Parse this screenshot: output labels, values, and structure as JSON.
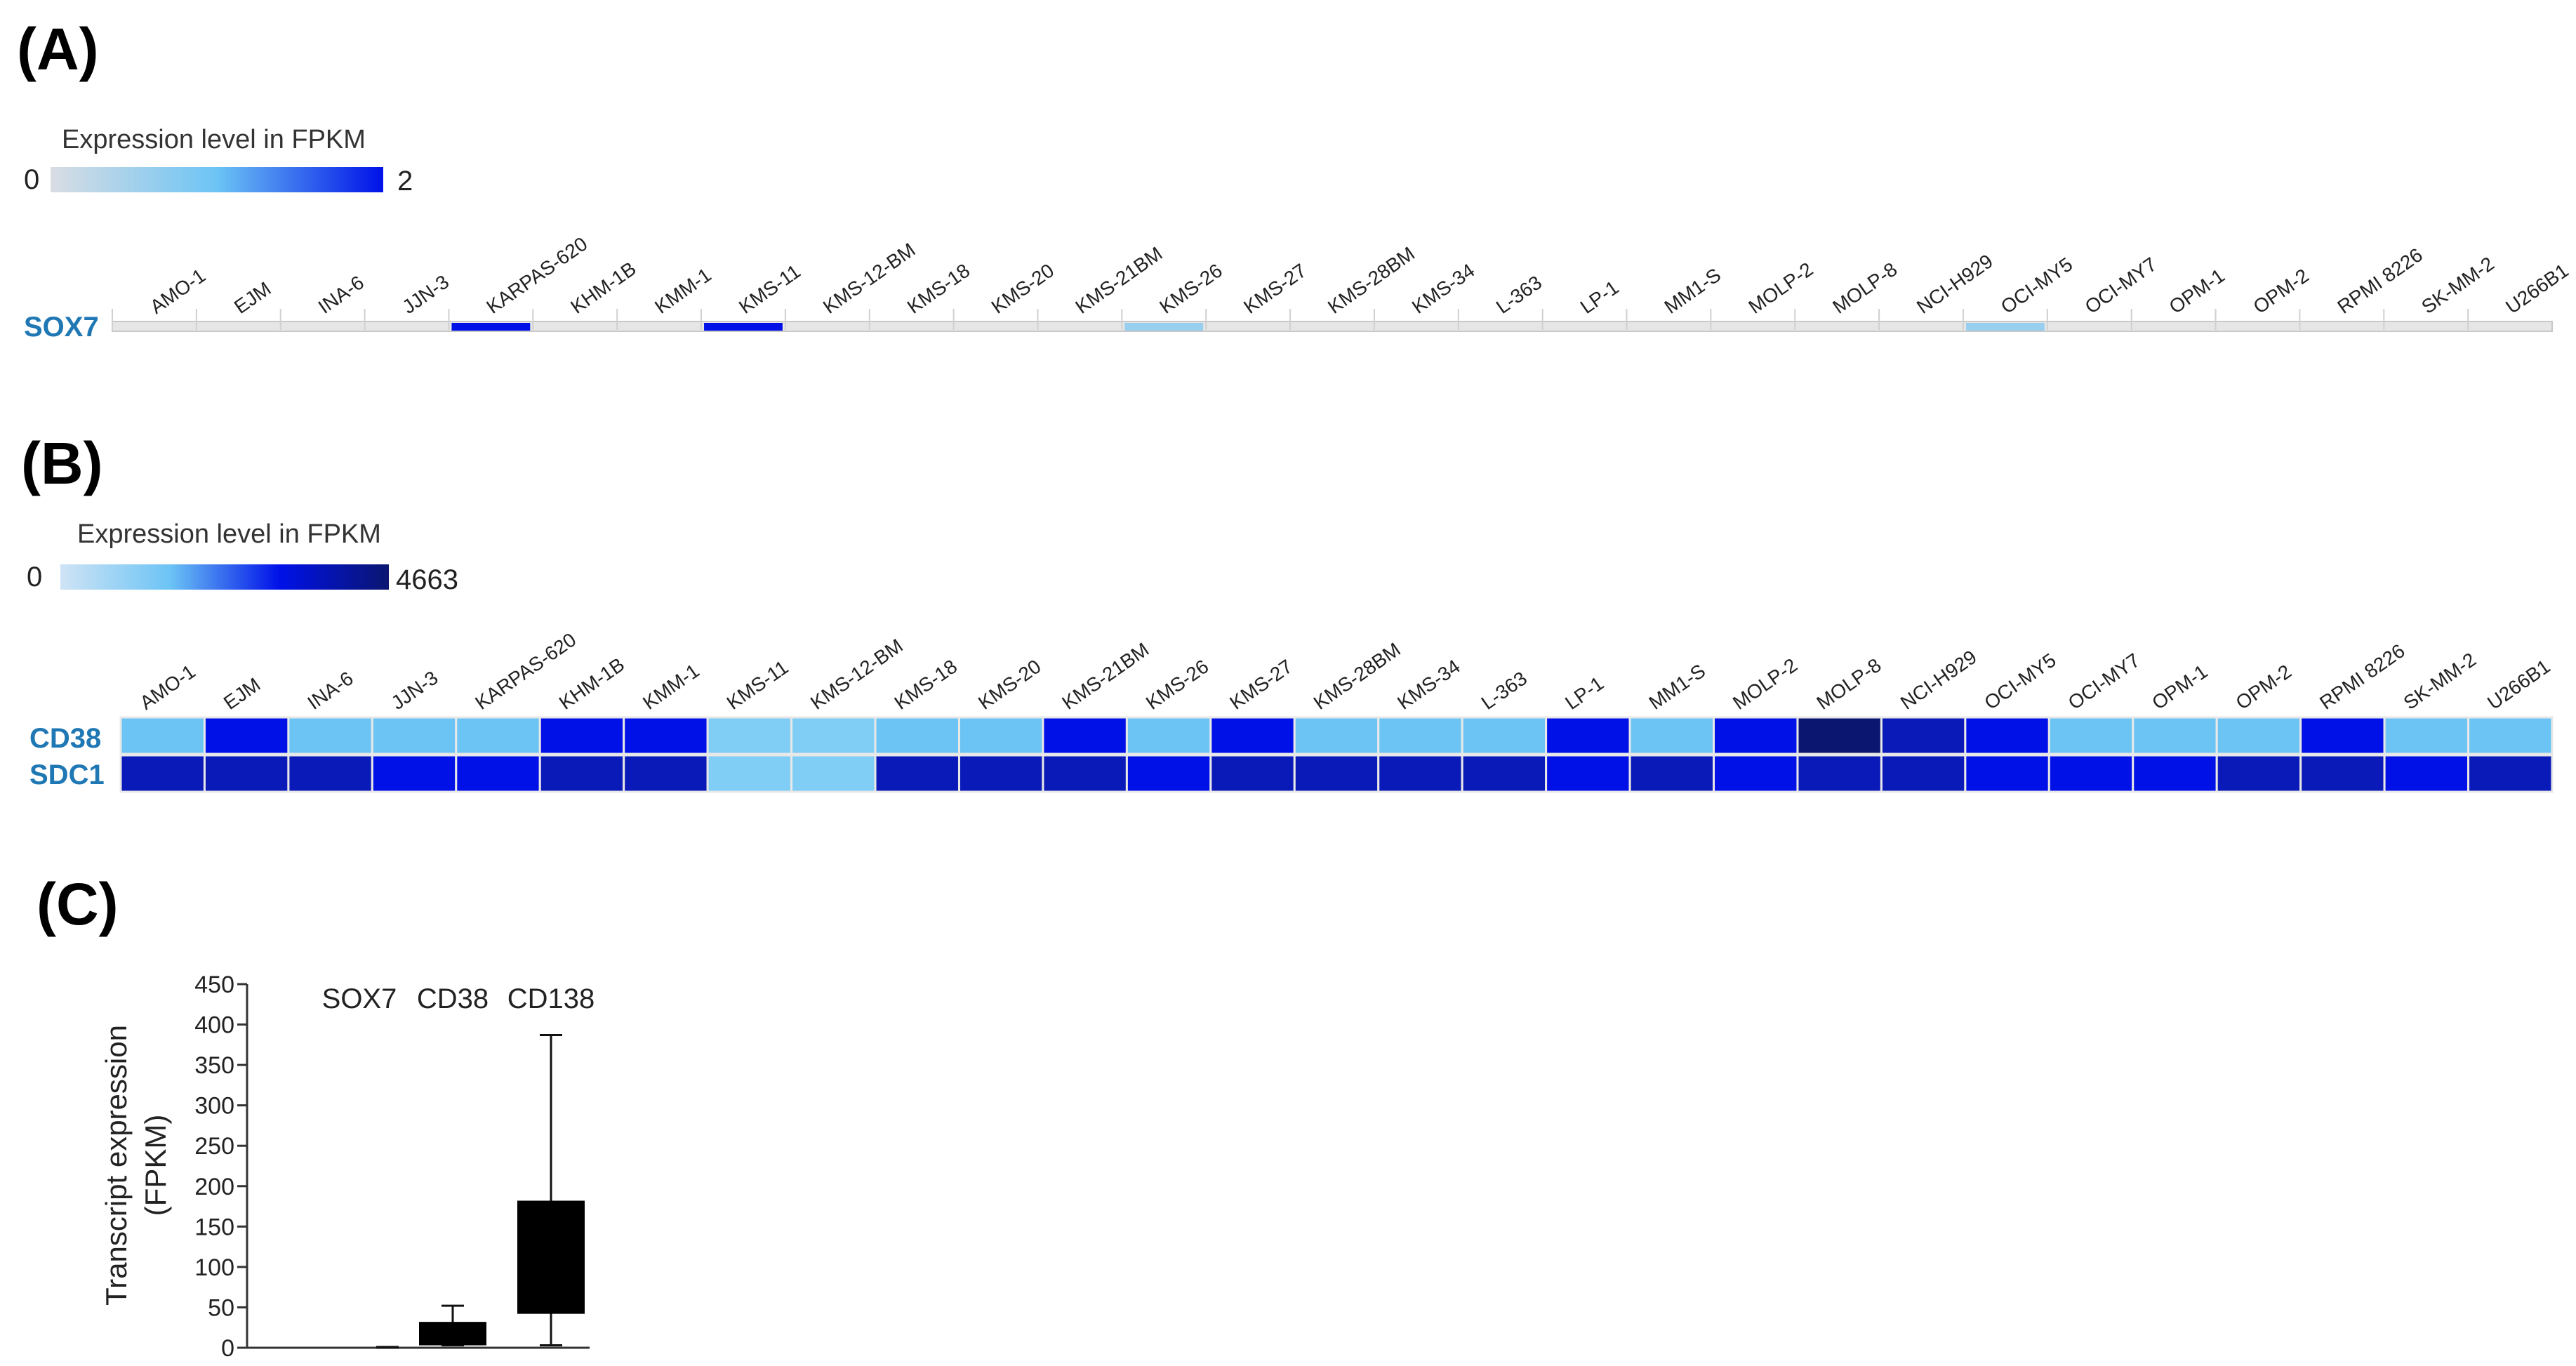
{
  "panels": {
    "a": "(A)",
    "b": "(B)",
    "c": "(C)"
  },
  "panel_a": {
    "legend_title": "Expression level in FPKM",
    "legend_min": "0",
    "legend_max": "2",
    "legend_colors": [
      "#d9dde3",
      "#6cc4f5",
      "#0011e8"
    ],
    "gene": "SOX7"
  },
  "panel_b": {
    "legend_title": "Expression level in FPKM",
    "legend_min": "0",
    "legend_max": "4663",
    "legend_colors": [
      "#cfe3f5",
      "#6cc4f5",
      "#0011e8",
      "#0a1670"
    ],
    "genes": [
      "CD38",
      "SDC1"
    ]
  },
  "colors": {
    "label_blue": "#1f77b4",
    "track_grey": "#e6e6e6",
    "track_border": "#c8c8c8"
  },
  "chart_data": [
    {
      "type": "heatmap",
      "panel": "A",
      "title": "Expression level in FPKM",
      "scale": {
        "min": 0,
        "max": 2
      },
      "columns": [
        "AMO-1",
        "EJM",
        "INA-6",
        "JJN-3",
        "KARPAS-620",
        "KHM-1B",
        "KMM-1",
        "KMS-11",
        "KMS-12-BM",
        "KMS-18",
        "KMS-20",
        "KMS-21BM",
        "KMS-26",
        "KMS-27",
        "KMS-28BM",
        "KMS-34",
        "L-363",
        "LP-1",
        "MM1-S",
        "MOLP-2",
        "MOLP-8",
        "NCI-H929",
        "OCI-MY5",
        "OCI-MY7",
        "OPM-1",
        "OPM-2",
        "RPMI 8226",
        "SK-MM-2",
        "U266B1"
      ],
      "rows": [
        "SOX7"
      ],
      "values": [
        [
          0,
          0,
          0,
          0,
          2,
          0,
          0,
          2,
          0,
          0,
          0,
          0,
          0.6,
          0,
          0,
          0,
          0,
          0,
          0,
          0,
          0,
          0,
          0.6,
          0,
          0,
          0,
          0,
          0,
          0
        ]
      ]
    },
    {
      "type": "heatmap",
      "panel": "B",
      "title": "Expression level in FPKM",
      "scale": {
        "min": 0,
        "max": 4663
      },
      "columns": [
        "AMO-1",
        "EJM",
        "INA-6",
        "JJN-3",
        "KARPAS-620",
        "KHM-1B",
        "KMM-1",
        "KMS-11",
        "KMS-12-BM",
        "KMS-18",
        "KMS-20",
        "KMS-21BM",
        "KMS-26",
        "KMS-27",
        "KMS-28BM",
        "KMS-34",
        "L-363",
        "LP-1",
        "MM1-S",
        "MOLP-2",
        "MOLP-8",
        "NCI-H929",
        "OCI-MY5",
        "OCI-MY7",
        "OPM-1",
        "OPM-2",
        "RPMI 8226",
        "SK-MM-2",
        "U266B1"
      ],
      "rows": [
        "CD38",
        "SDC1"
      ],
      "colors": [
        [
          "#6cc4f5",
          "#0011e8",
          "#6cc4f5",
          "#6cc4f5",
          "#6cc4f5",
          "#0011e8",
          "#0011e8",
          "#80cdf6",
          "#80cdf6",
          "#6cc4f5",
          "#6cc4f5",
          "#0011e8",
          "#6cc4f5",
          "#0011e8",
          "#6cc4f5",
          "#6cc4f5",
          "#6cc4f5",
          "#0011e8",
          "#6cc4f5",
          "#0011e8",
          "#0a1670",
          "#0a1ab8",
          "#0011e8",
          "#6cc4f5",
          "#6cc4f5",
          "#6cc4f5",
          "#0011e8",
          "#6cc4f5",
          "#6cc4f5"
        ],
        [
          "#0a1ab8",
          "#0a1ab8",
          "#0a1ab8",
          "#0011e8",
          "#0011e8",
          "#0a1ab8",
          "#0a1ab8",
          "#80cdf6",
          "#80cdf6",
          "#0a1ab8",
          "#0a1ab8",
          "#0a1ab8",
          "#0011e8",
          "#0a1ab8",
          "#0a1ab8",
          "#0a1ab8",
          "#0a1ab8",
          "#0011e8",
          "#0a1ab8",
          "#0011e8",
          "#0a1ab8",
          "#0a1ab8",
          "#0011e8",
          "#0011e8",
          "#0011e8",
          "#0a1ab8",
          "#0a1ab8",
          "#0011e8",
          "#0a1ab8"
        ]
      ]
    },
    {
      "type": "bar",
      "panel": "C",
      "categories": [
        "SOX7",
        "CD38",
        "CD138"
      ],
      "ylabel": "Transcript expression (FPKM)",
      "ylim": [
        0,
        450
      ],
      "yticks": [
        0,
        50,
        100,
        150,
        200,
        250,
        300,
        350,
        400,
        450
      ],
      "boxes": [
        {
          "name": "SOX7",
          "min": 0,
          "q1": 0,
          "q3": 0,
          "max": 1
        },
        {
          "name": "CD38",
          "min": 3,
          "q1": 3,
          "q3": 32,
          "max": 52
        },
        {
          "name": "CD138",
          "min": 3,
          "q1": 42,
          "q3": 182,
          "max": 387
        }
      ]
    }
  ]
}
